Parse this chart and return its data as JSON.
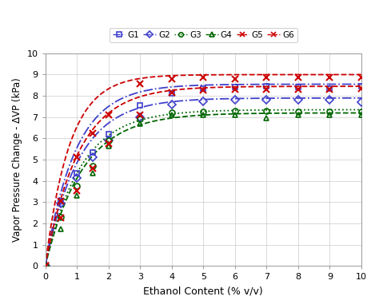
{
  "x_points": [
    0,
    0.5,
    1.0,
    1.5,
    2.0,
    3.0,
    4.0,
    5.0,
    6.0,
    7.0,
    8.0,
    9.0,
    10.0
  ],
  "series": {
    "G1": {
      "color": "#4040cc",
      "linestyle": "-.",
      "marker": "s",
      "A": 8.55,
      "k": 1.05,
      "y_values": [
        0,
        3.05,
        4.35,
        5.35,
        6.2,
        7.55,
        8.1,
        8.35,
        8.4,
        8.45,
        8.4,
        8.35,
        8.45
      ]
    },
    "G2": {
      "color": "#4040cc",
      "linestyle": "-.",
      "marker": "D",
      "A": 7.9,
      "k": 0.95,
      "y_values": [
        0,
        2.95,
        4.15,
        5.1,
        5.9,
        7.0,
        7.6,
        7.75,
        7.8,
        7.82,
        7.8,
        7.82,
        7.7
      ]
    },
    "G3": {
      "color": "#006600",
      "linestyle": ":",
      "marker": "o",
      "A": 7.35,
      "k": 0.9,
      "y_values": [
        0,
        2.3,
        3.75,
        4.7,
        5.9,
        6.9,
        7.2,
        7.25,
        7.3,
        7.3,
        7.25,
        7.25,
        7.25
      ]
    },
    "G4": {
      "color": "#006600",
      "linestyle": "--",
      "marker": "^",
      "A": 7.2,
      "k": 0.85,
      "y_values": [
        0,
        1.75,
        3.3,
        4.35,
        5.65,
        6.7,
        7.1,
        7.1,
        7.1,
        6.95,
        7.1,
        7.1,
        7.1
      ]
    },
    "G5": {
      "color": "#cc0000",
      "linestyle": "--",
      "marker": "x",
      "A": 9.0,
      "k": 1.3,
      "y_values": [
        0,
        3.05,
        5.1,
        6.25,
        7.1,
        8.55,
        8.8,
        8.85,
        8.8,
        8.85,
        8.85,
        8.85,
        8.85
      ]
    },
    "G6": {
      "color": "#cc0000",
      "linestyle": "--",
      "marker": "x",
      "A": 8.45,
      "k": 0.95,
      "y_values": [
        0,
        2.25,
        3.55,
        4.6,
        5.75,
        7.1,
        8.15,
        8.25,
        8.3,
        8.3,
        8.3,
        8.3,
        8.35
      ]
    }
  },
  "xlabel": "Ethanol Content (% v/v)",
  "ylabel": "Vapor Pressure Change - ΔVP (kPa)",
  "xlim": [
    0,
    10
  ],
  "ylim": [
    0,
    10
  ],
  "xticks": [
    0,
    1,
    2,
    3,
    4,
    5,
    6,
    7,
    8,
    9,
    10
  ],
  "yticks": [
    0,
    1,
    2,
    3,
    4,
    5,
    6,
    7,
    8,
    9,
    10
  ],
  "legend_labels": [
    "G1",
    "G2",
    "G3",
    "G4",
    "G5",
    "G6"
  ],
  "legend_colors": [
    "#4040cc",
    "#4040cc",
    "#006600",
    "#006600",
    "#cc0000",
    "#cc0000"
  ],
  "legend_markers": [
    "s",
    "D",
    "o",
    "^",
    "x",
    "x"
  ],
  "legend_lstyles": [
    "-.",
    "-.",
    ":",
    "--",
    "--",
    "--"
  ],
  "background_color": "#ffffff",
  "grid_color": "#cccccc"
}
